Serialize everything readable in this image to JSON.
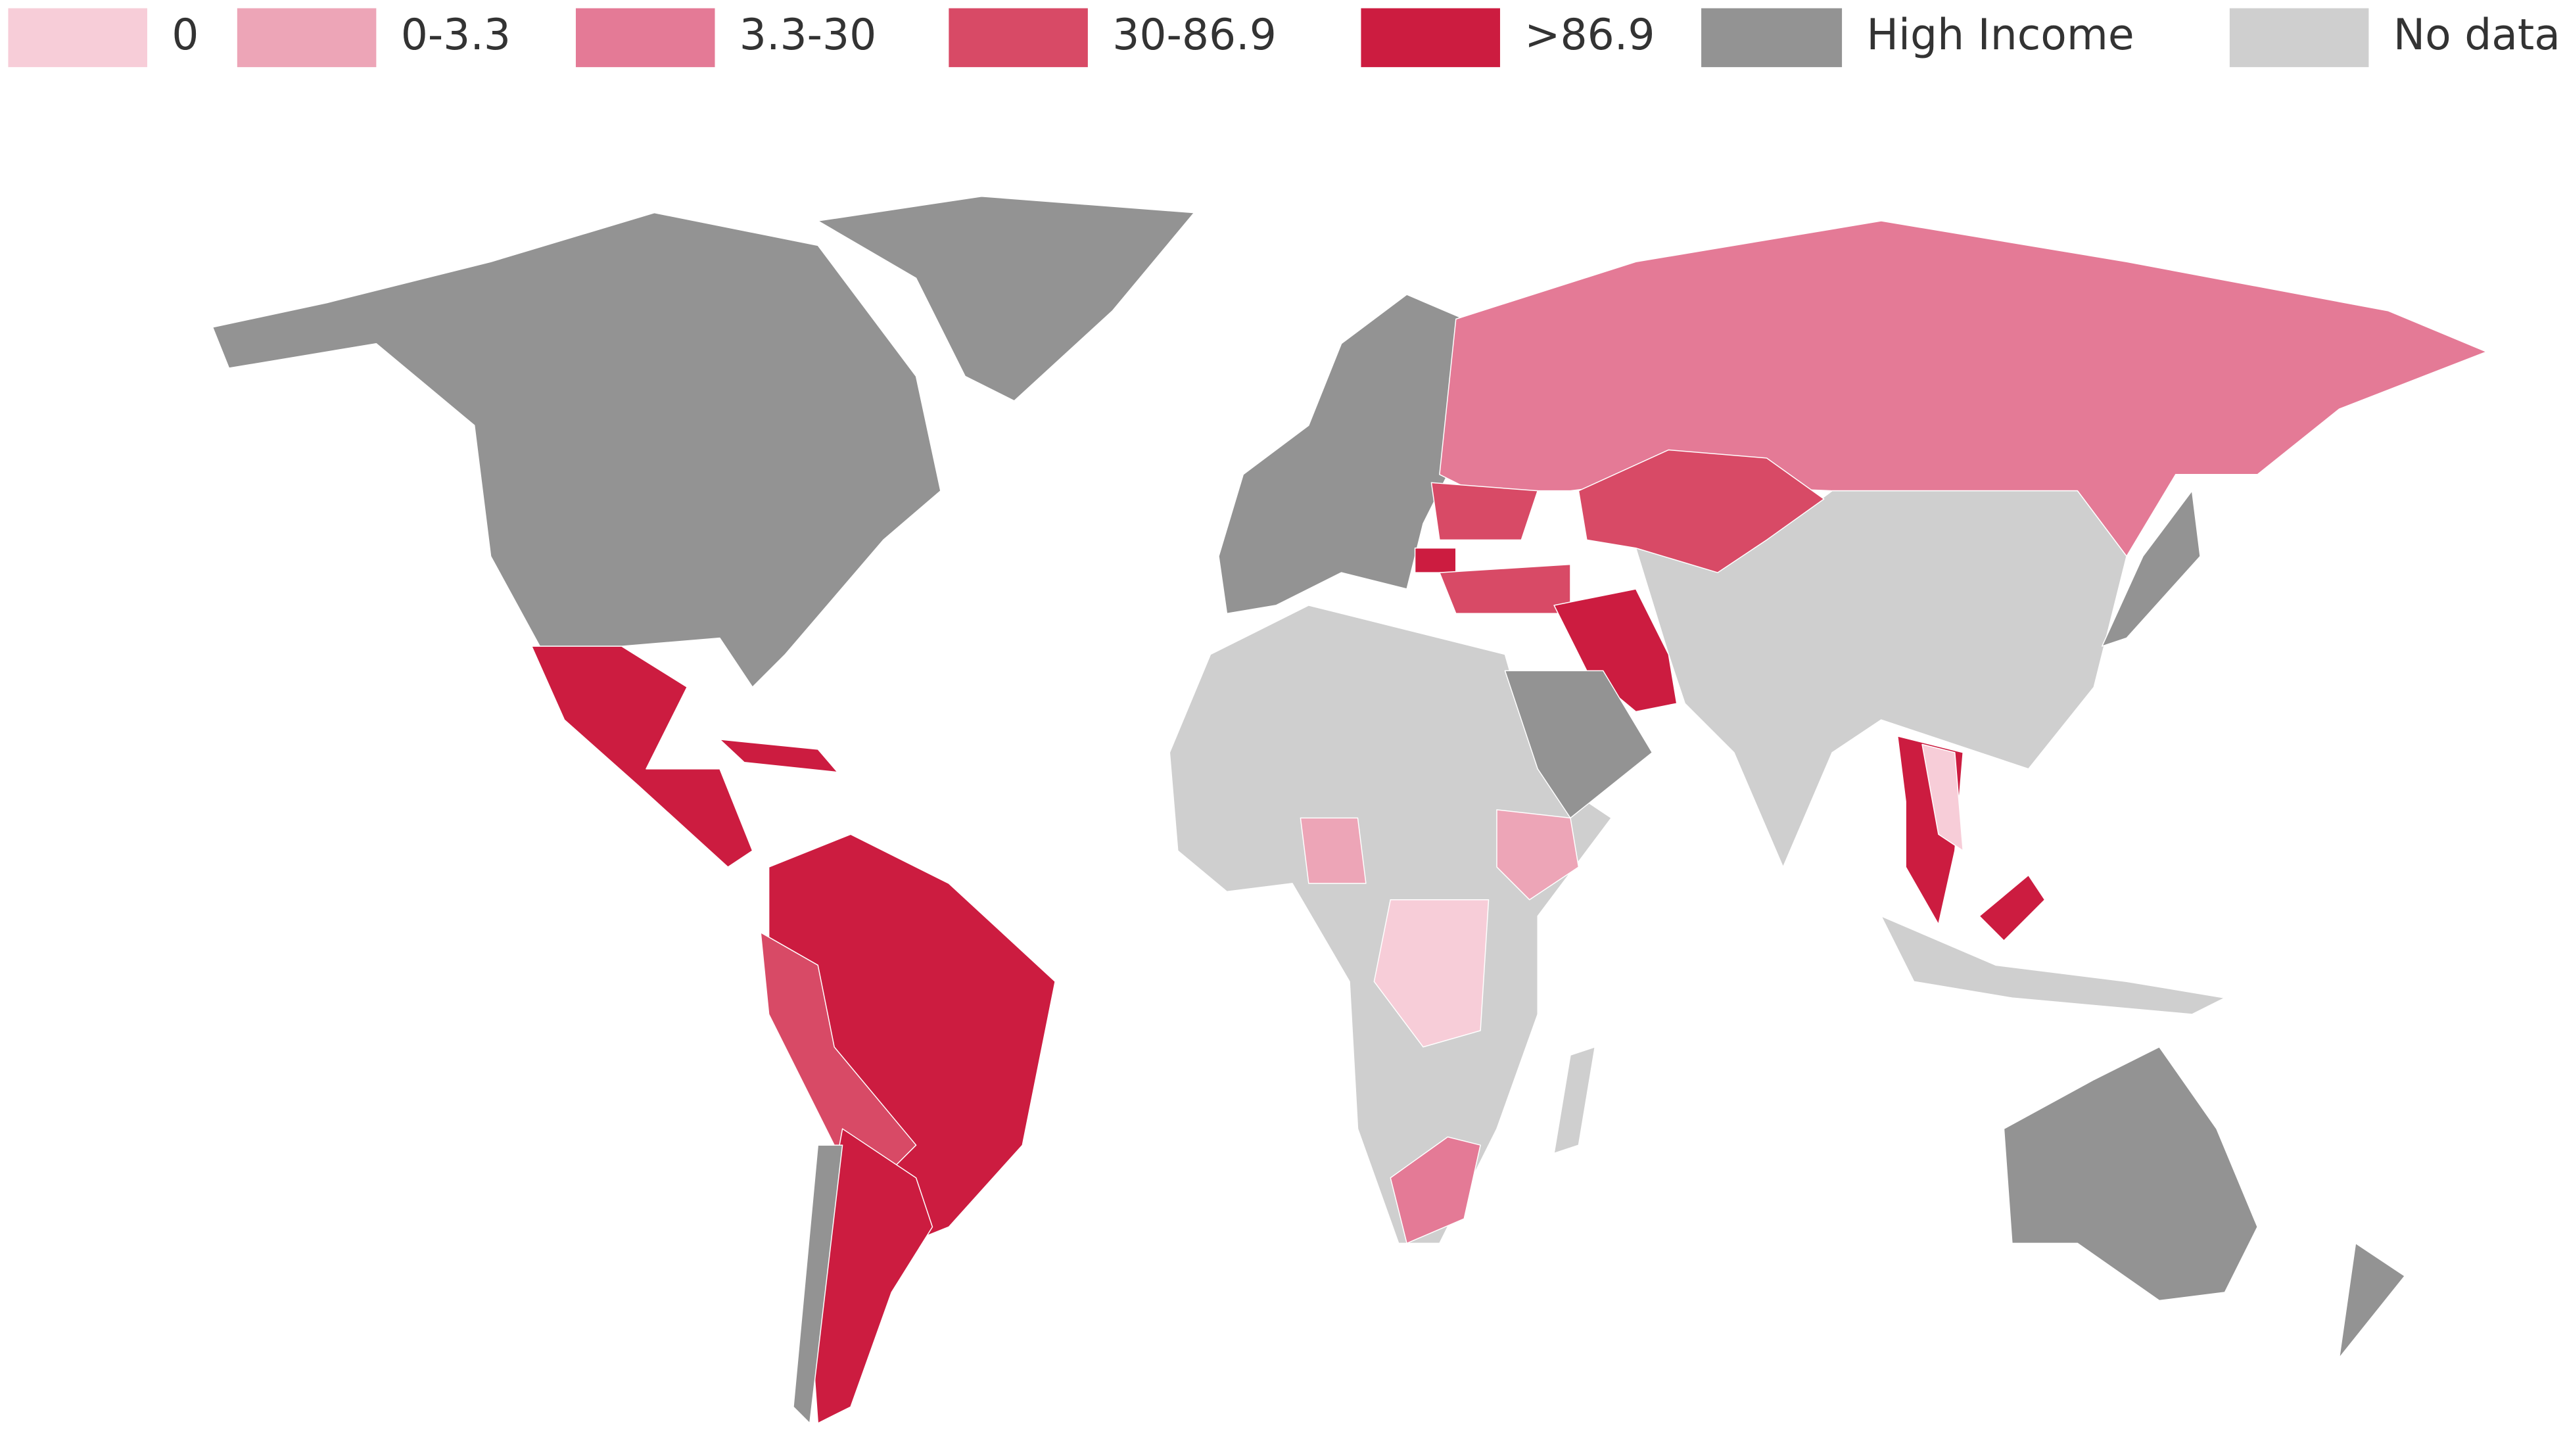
{
  "legend": {
    "items": [
      {
        "label": "0",
        "color": "#f7cdd8"
      },
      {
        "label": "0-3.3",
        "color": "#eda5b7"
      },
      {
        "label": "3.3-30",
        "color": "#e47a96"
      },
      {
        "label": "30-86.9",
        "color": "#d84a66"
      },
      {
        "label": ">86.9",
        "color": "#cc1c40"
      },
      {
        "label": "High Income",
        "color": "#939393"
      },
      {
        "label": "No data",
        "color": "#cfcfcf"
      }
    ]
  }
}
